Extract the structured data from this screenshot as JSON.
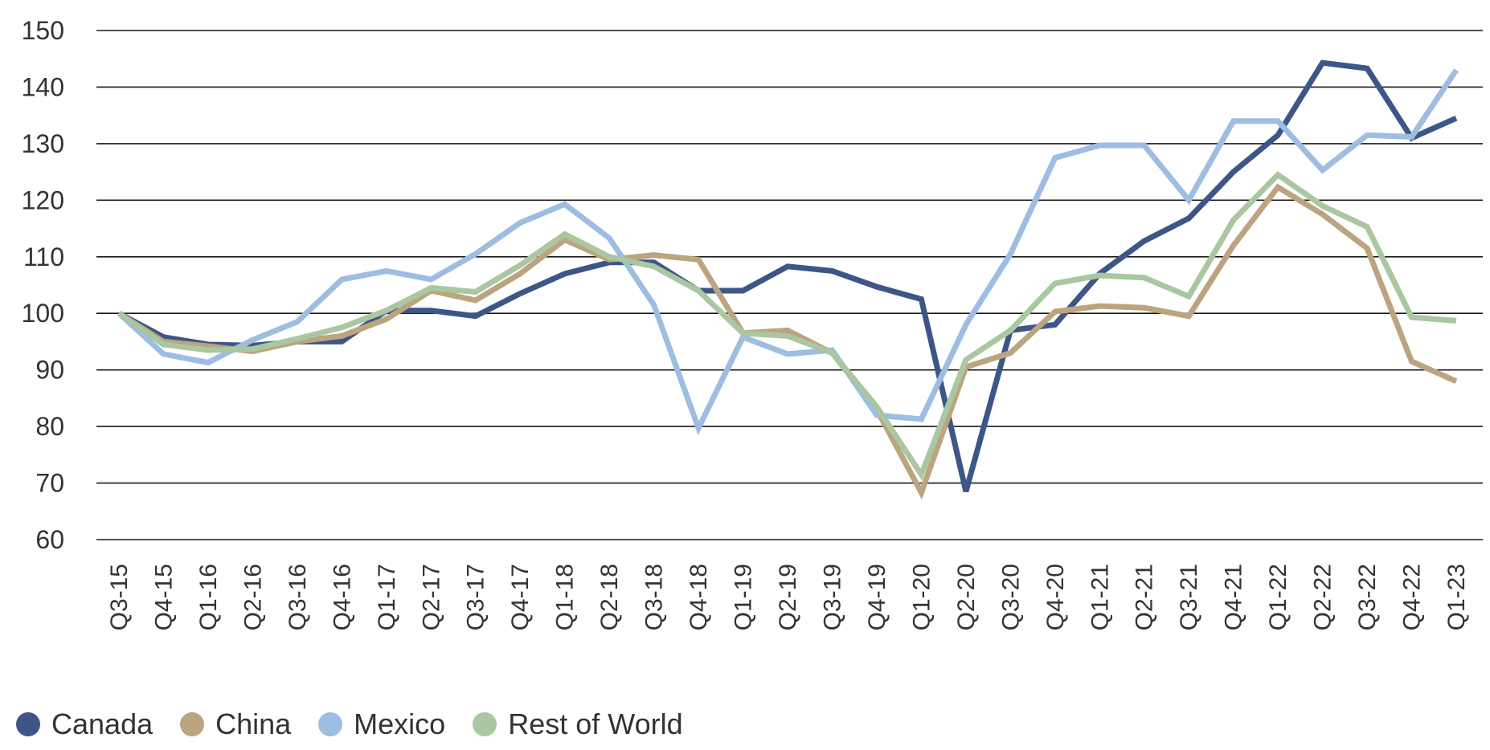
{
  "chart_data": {
    "type": "line",
    "title": "",
    "xlabel": "",
    "ylabel": "",
    "ylim": [
      60,
      150
    ],
    "yticks": [
      60,
      70,
      80,
      90,
      100,
      110,
      120,
      130,
      140,
      150
    ],
    "grid": true,
    "legend_position": "bottom-left",
    "categories": [
      "Q3-15",
      "Q4-15",
      "Q1-16",
      "Q2-16",
      "Q3-16",
      "Q4-16",
      "Q1-17",
      "Q2-17",
      "Q3-17",
      "Q4-17",
      "Q1-18",
      "Q2-18",
      "Q3-18",
      "Q4-18",
      "Q1-19",
      "Q2-19",
      "Q3-19",
      "Q4-19",
      "Q1-20",
      "Q2-20",
      "Q3-20",
      "Q4-20",
      "Q1-21",
      "Q2-21",
      "Q3-21",
      "Q4-21",
      "Q1-22",
      "Q2-22",
      "Q3-22",
      "Q4-22",
      "Q1-23"
    ],
    "series": [
      {
        "name": "Canada",
        "color": "#3d5687",
        "values": [
          100,
          95.8,
          94.5,
          94.3,
          95,
          95,
          100.5,
          100.5,
          99.5,
          103.5,
          107,
          109,
          109,
          104,
          104,
          108.3,
          107.5,
          104.7,
          102.5,
          68.5,
          97,
          98,
          107,
          112.8,
          116.8,
          125,
          131.5,
          144.3,
          143.3,
          131,
          134.5
        ]
      },
      {
        "name": "China",
        "color": "#bba47f",
        "values": [
          100,
          95,
          94.2,
          93.3,
          95,
          96,
          99,
          104,
          102.3,
          107,
          113,
          109.5,
          110.3,
          109.5,
          96.5,
          97,
          93,
          83,
          68.3,
          90.5,
          93,
          100.3,
          101.3,
          101,
          99.5,
          112,
          122.3,
          117.5,
          111.5,
          91.5,
          88
        ]
      },
      {
        "name": "Mexico",
        "color": "#9dbde3",
        "values": [
          100,
          92.8,
          91.3,
          95.3,
          98.5,
          106,
          107.5,
          106,
          110.5,
          116,
          119.3,
          113.3,
          101.5,
          79.7,
          95.8,
          92.8,
          93.5,
          82,
          81.3,
          98,
          110.5,
          127.5,
          129.7,
          129.7,
          120,
          134,
          134,
          125.3,
          131.5,
          131.2,
          143
        ]
      },
      {
        "name": "Rest of World",
        "color": "#a9c7a0",
        "values": [
          100,
          94.5,
          93.5,
          93.7,
          95.5,
          97.5,
          100.5,
          104.5,
          103.8,
          108.5,
          114,
          110,
          108.3,
          104,
          96.5,
          96,
          93,
          83.5,
          71.5,
          91.8,
          97,
          105.3,
          106.7,
          106.3,
          103,
          116.5,
          124.5,
          119,
          115.3,
          99.3,
          98.7
        ]
      }
    ]
  }
}
